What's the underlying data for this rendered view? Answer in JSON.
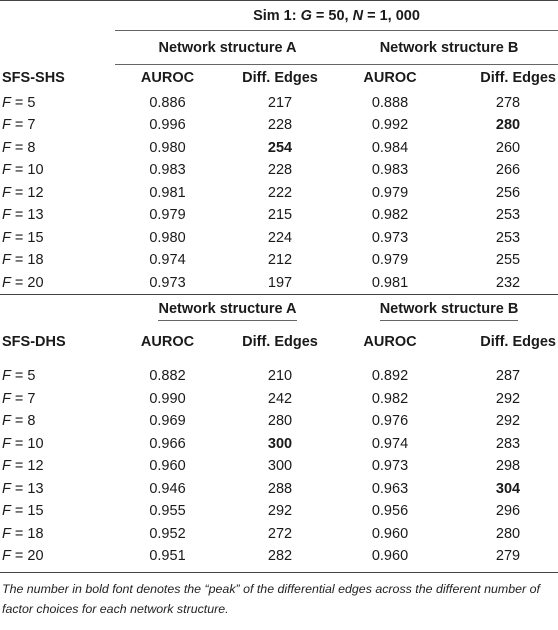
{
  "title": {
    "prefix": "Sim 1: ",
    "g_var": "G",
    "g_val": " = 50, ",
    "n_var": "N",
    "n_val": " = 1, 000"
  },
  "network_a": "Network structure A",
  "network_b": "Network structure B",
  "auroc_label": "AUROC",
  "diff_label": "Diff. Edges",
  "sections": [
    {
      "label": "SFS-SHS",
      "rows": [
        {
          "f": "5",
          "a_auroc": "0.886",
          "a_diff": "217",
          "b_auroc": "0.888",
          "b_diff": "278"
        },
        {
          "f": "7",
          "a_auroc": "0.996",
          "a_diff": "228",
          "b_auroc": "0.992",
          "b_diff": "280"
        },
        {
          "f": "8",
          "a_auroc": "0.980",
          "a_diff": "254",
          "b_auroc": "0.984",
          "b_diff": "260"
        },
        {
          "f": "10",
          "a_auroc": "0.983",
          "a_diff": "228",
          "b_auroc": "0.983",
          "b_diff": "266"
        },
        {
          "f": "12",
          "a_auroc": "0.981",
          "a_diff": "222",
          "b_auroc": "0.979",
          "b_diff": "256"
        },
        {
          "f": "13",
          "a_auroc": "0.979",
          "a_diff": "215",
          "b_auroc": "0.982",
          "b_diff": "253"
        },
        {
          "f": "15",
          "a_auroc": "0.980",
          "a_diff": "224",
          "b_auroc": "0.973",
          "b_diff": "253"
        },
        {
          "f": "18",
          "a_auroc": "0.974",
          "a_diff": "212",
          "b_auroc": "0.979",
          "b_diff": "255"
        },
        {
          "f": "20",
          "a_auroc": "0.973",
          "a_diff": "197",
          "b_auroc": "0.981",
          "b_diff": "232"
        }
      ]
    },
    {
      "label": "SFS-DHS",
      "rows": [
        {
          "f": "5",
          "a_auroc": "0.882",
          "a_diff": "210",
          "b_auroc": "0.892",
          "b_diff": "287"
        },
        {
          "f": "7",
          "a_auroc": "0.990",
          "a_diff": "242",
          "b_auroc": "0.982",
          "b_diff": "292"
        },
        {
          "f": "8",
          "a_auroc": "0.969",
          "a_diff": "280",
          "b_auroc": "0.976",
          "b_diff": "292"
        },
        {
          "f": "10",
          "a_auroc": "0.966",
          "a_diff": "300",
          "b_auroc": "0.974",
          "b_diff": "283"
        },
        {
          "f": "12",
          "a_auroc": "0.960",
          "a_diff": "300",
          "b_auroc": "0.973",
          "b_diff": "298"
        },
        {
          "f": "13",
          "a_auroc": "0.946",
          "a_diff": "288",
          "b_auroc": "0.963",
          "b_diff": "304"
        },
        {
          "f": "15",
          "a_auroc": "0.955",
          "a_diff": "292",
          "b_auroc": "0.956",
          "b_diff": "296"
        },
        {
          "f": "18",
          "a_auroc": "0.952",
          "a_diff": "272",
          "b_auroc": "0.960",
          "b_diff": "280"
        },
        {
          "f": "20",
          "a_auroc": "0.951",
          "a_diff": "282",
          "b_auroc": "0.960",
          "b_diff": "279"
        }
      ]
    }
  ],
  "f_var": "F",
  "f_eq": " = ",
  "footnote": "The number in bold font denotes the “peak” of the differential edges across the different number of factor choices for each network structure."
}
